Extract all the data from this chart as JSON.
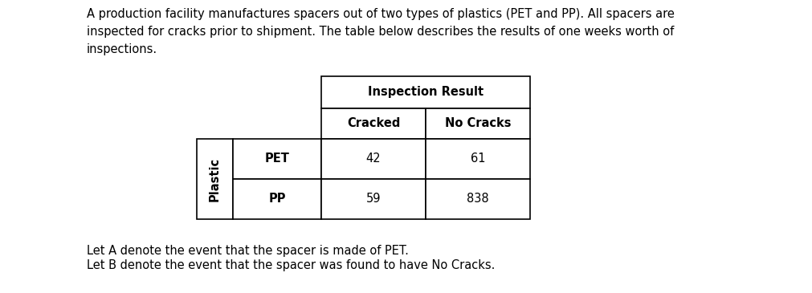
{
  "title_text": "A production facility manufactures spacers out of two types of plastics (PET and PP). All spacers are\ninspected for cracks prior to shipment. The table below describes the results of one weeks worth of\ninspections.",
  "inspection_result_header": "Inspection Result",
  "col_headers": [
    "Cracked",
    "No Cracks"
  ],
  "row_label_header": "Plastic",
  "row_labels": [
    "PET",
    "PP"
  ],
  "data": [
    [
      42,
      61
    ],
    [
      59,
      838
    ]
  ],
  "footer_lines": [
    "Let A denote the event that the spacer is made of PET.",
    "Let B denote the event that the spacer was found to have No Cracks."
  ],
  "bg_color": "#ffffff",
  "text_color": "#000000",
  "font_size_body": 10.5,
  "font_size_table": 10.5
}
